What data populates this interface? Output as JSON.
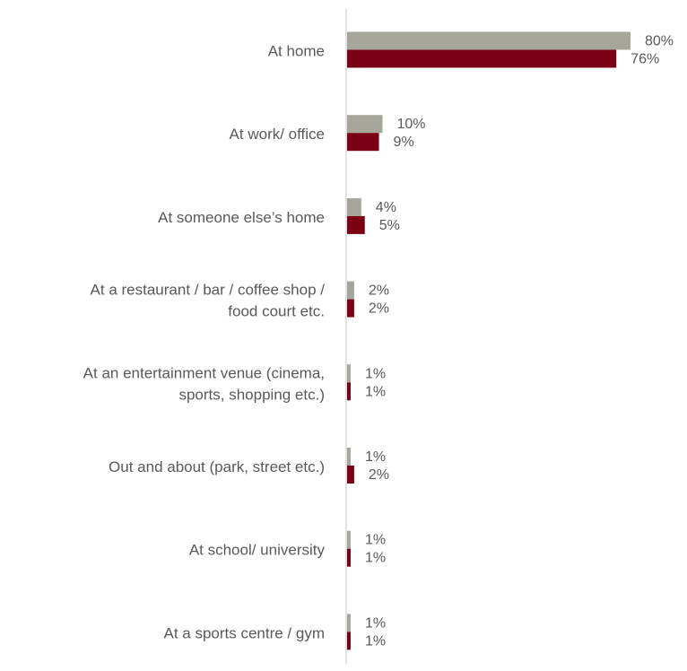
{
  "chart_data": {
    "type": "bar",
    "orientation": "horizontal",
    "categories": [
      [
        "At home"
      ],
      [
        "At work/ office"
      ],
      [
        "At someone else’s home"
      ],
      [
        "At a restaurant / bar / coffee shop /",
        "food court etc."
      ],
      [
        "At an entertainment venue (cinema,",
        "sports, shopping etc.)"
      ],
      [
        "Out and about (park, street etc.)"
      ],
      [
        "At school/ university"
      ],
      [
        "At a sports centre / gym"
      ]
    ],
    "series": [
      {
        "color": "#a6a69b",
        "values": [
          80,
          10,
          4,
          2,
          1,
          1,
          1,
          1
        ],
        "labels": [
          "80%",
          "10%",
          "4%",
          "2%",
          "1%",
          "1%",
          "1%",
          "1%"
        ]
      },
      {
        "color": "#7b0013",
        "values": [
          76,
          9,
          5,
          2,
          1,
          2,
          1,
          1
        ],
        "labels": [
          "76%",
          "9%",
          "5%",
          "2%",
          "1%",
          "2%",
          "1%",
          "1%"
        ]
      }
    ],
    "xlim": [
      0,
      80
    ],
    "legend": "none",
    "grid": false
  }
}
